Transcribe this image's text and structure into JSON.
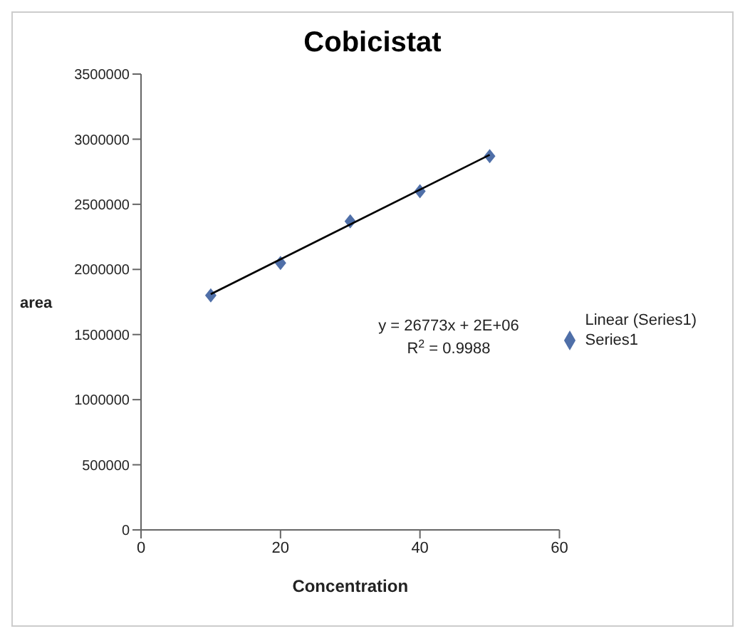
{
  "chart_data": {
    "type": "scatter",
    "title": "Cobicistat",
    "xlabel": "Concentration",
    "ylabel": "area",
    "x": [
      10,
      20,
      30,
      40,
      50
    ],
    "series": [
      {
        "name": "Series1",
        "color": "#4f6fa8",
        "marker": "diamond",
        "values": [
          1800000,
          2050000,
          2370000,
          2600000,
          2870000
        ]
      },
      {
        "name": "Linear (Series1)",
        "type": "line",
        "color": "#000000",
        "x": [
          10,
          50
        ],
        "values": [
          1810000,
          2880000
        ]
      }
    ],
    "xlim": [
      0,
      60
    ],
    "xticks": [
      0,
      20,
      40,
      60
    ],
    "ylim": [
      0,
      3500000
    ],
    "yticks": [
      0,
      500000,
      1000000,
      1500000,
      2000000,
      2500000,
      3000000,
      3500000
    ],
    "annotations": [
      "y = 26773x + 2E+06",
      "R$^{2}$ = 0.9988"
    ],
    "legend": "right",
    "grid": false
  }
}
